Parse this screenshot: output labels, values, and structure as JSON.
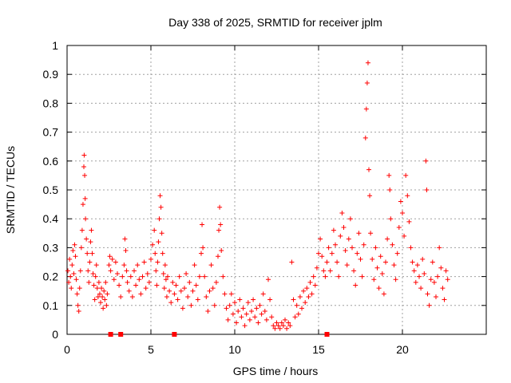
{
  "chart_data": {
    "type": "scatter",
    "title": "Day 338 of 2025, SRMTID for receiver jplm",
    "xlabel": "GPS time / hours",
    "ylabel": "SRMTID / TECUs",
    "xlim": [
      0,
      25
    ],
    "ylim": [
      0,
      1
    ],
    "xticks": [
      "0",
      "5",
      "10",
      "15",
      "20"
    ],
    "yticks": [
      "0",
      "0.1",
      "0.2",
      "0.3",
      "0.4",
      "0.5",
      "0.6",
      "0.7",
      "0.8",
      "0.9",
      "1"
    ],
    "grid": true,
    "marker": "+",
    "color": "#ff0000",
    "outage_markers_x": [
      2.6,
      3.2,
      6.4,
      15.5
    ],
    "series": [
      {
        "name": "SRMTID",
        "points": [
          [
            0.05,
            0.22
          ],
          [
            0.1,
            0.18
          ],
          [
            0.15,
            0.26
          ],
          [
            0.2,
            0.2
          ],
          [
            0.25,
            0.16
          ],
          [
            0.3,
            0.24
          ],
          [
            0.35,
            0.29
          ],
          [
            0.4,
            0.21
          ],
          [
            0.45,
            0.31
          ],
          [
            0.5,
            0.27
          ],
          [
            0.55,
            0.19
          ],
          [
            0.6,
            0.14
          ],
          [
            0.65,
            0.1
          ],
          [
            0.7,
            0.08
          ],
          [
            0.75,
            0.16
          ],
          [
            0.8,
            0.22
          ],
          [
            0.85,
            0.3
          ],
          [
            0.9,
            0.36
          ],
          [
            0.95,
            0.45
          ],
          [
            1.0,
            0.58
          ],
          [
            1.02,
            0.62
          ],
          [
            1.05,
            0.55
          ],
          [
            1.08,
            0.47
          ],
          [
            1.1,
            0.4
          ],
          [
            1.15,
            0.33
          ],
          [
            1.2,
            0.28
          ],
          [
            1.25,
            0.22
          ],
          [
            1.3,
            0.18
          ],
          [
            1.35,
            0.25
          ],
          [
            1.4,
            0.32
          ],
          [
            1.45,
            0.36
          ],
          [
            1.5,
            0.28
          ],
          [
            1.55,
            0.21
          ],
          [
            1.6,
            0.17
          ],
          [
            1.65,
            0.12
          ],
          [
            1.7,
            0.2
          ],
          [
            1.75,
            0.24
          ],
          [
            1.8,
            0.16
          ],
          [
            1.85,
            0.13
          ],
          [
            1.9,
            0.18
          ],
          [
            1.95,
            0.14
          ],
          [
            2.0,
            0.11
          ],
          [
            2.05,
            0.16
          ],
          [
            2.1,
            0.13
          ],
          [
            2.15,
            0.09
          ],
          [
            2.2,
            0.15
          ],
          [
            2.25,
            0.12
          ],
          [
            2.3,
            0.18
          ],
          [
            2.35,
            0.1
          ],
          [
            2.4,
            0.14
          ],
          [
            2.5,
            0.24
          ],
          [
            2.55,
            0.27
          ],
          [
            2.6,
            0.22
          ],
          [
            2.7,
            0.26
          ],
          [
            2.8,
            0.19
          ],
          [
            2.9,
            0.25
          ],
          [
            3.0,
            0.21
          ],
          [
            3.1,
            0.17
          ],
          [
            3.2,
            0.13
          ],
          [
            3.3,
            0.2
          ],
          [
            3.4,
            0.24
          ],
          [
            3.45,
            0.33
          ],
          [
            3.5,
            0.29
          ],
          [
            3.55,
            0.22
          ],
          [
            3.6,
            0.18
          ],
          [
            3.7,
            0.15
          ],
          [
            3.8,
            0.2
          ],
          [
            3.9,
            0.13
          ],
          [
            4.0,
            0.22
          ],
          [
            4.1,
            0.17
          ],
          [
            4.2,
            0.24
          ],
          [
            4.3,
            0.19
          ],
          [
            4.4,
            0.14
          ],
          [
            4.5,
            0.2
          ],
          [
            4.6,
            0.25
          ],
          [
            4.7,
            0.16
          ],
          [
            4.8,
            0.21
          ],
          [
            4.9,
            0.18
          ],
          [
            5.0,
            0.26
          ],
          [
            5.1,
            0.31
          ],
          [
            5.2,
            0.36
          ],
          [
            5.25,
            0.28
          ],
          [
            5.3,
            0.22
          ],
          [
            5.35,
            0.17
          ],
          [
            5.4,
            0.25
          ],
          [
            5.45,
            0.32
          ],
          [
            5.5,
            0.4
          ],
          [
            5.55,
            0.48
          ],
          [
            5.6,
            0.44
          ],
          [
            5.65,
            0.35
          ],
          [
            5.7,
            0.28
          ],
          [
            5.75,
            0.21
          ],
          [
            5.8,
            0.16
          ],
          [
            5.85,
            0.24
          ],
          [
            5.9,
            0.19
          ],
          [
            5.95,
            0.13
          ],
          [
            6.0,
            0.2
          ],
          [
            6.1,
            0.15
          ],
          [
            6.2,
            0.11
          ],
          [
            6.3,
            0.18
          ],
          [
            6.4,
            0.14
          ],
          [
            6.5,
            0.17
          ],
          [
            6.6,
            0.12
          ],
          [
            6.7,
            0.2
          ],
          [
            6.8,
            0.15
          ],
          [
            6.9,
            0.09
          ],
          [
            7.0,
            0.16
          ],
          [
            7.1,
            0.21
          ],
          [
            7.2,
            0.13
          ],
          [
            7.3,
            0.18
          ],
          [
            7.4,
            0.1
          ],
          [
            7.5,
            0.15
          ],
          [
            7.6,
            0.24
          ],
          [
            7.7,
            0.17
          ],
          [
            7.8,
            0.12
          ],
          [
            7.9,
            0.2
          ],
          [
            8.0,
            0.28
          ],
          [
            8.05,
            0.38
          ],
          [
            8.1,
            0.3
          ],
          [
            8.2,
            0.2
          ],
          [
            8.3,
            0.13
          ],
          [
            8.4,
            0.08
          ],
          [
            8.5,
            0.15
          ],
          [
            8.6,
            0.24
          ],
          [
            8.7,
            0.16
          ],
          [
            8.8,
            0.1
          ],
          [
            8.9,
            0.18
          ],
          [
            9.0,
            0.27
          ],
          [
            9.05,
            0.36
          ],
          [
            9.1,
            0.44
          ],
          [
            9.15,
            0.38
          ],
          [
            9.2,
            0.29
          ],
          [
            9.3,
            0.2
          ],
          [
            9.4,
            0.14
          ],
          [
            9.5,
            0.09
          ],
          [
            9.6,
            0.05
          ],
          [
            9.7,
            0.1
          ],
          [
            9.8,
            0.14
          ],
          [
            9.9,
            0.07
          ],
          [
            10.0,
            0.11
          ],
          [
            10.1,
            0.04
          ],
          [
            10.2,
            0.08
          ],
          [
            10.3,
            0.12
          ],
          [
            10.4,
            0.06
          ],
          [
            10.5,
            0.09
          ],
          [
            10.6,
            0.03
          ],
          [
            10.7,
            0.07
          ],
          [
            10.8,
            0.11
          ],
          [
            10.9,
            0.05
          ],
          [
            11.0,
            0.08
          ],
          [
            11.1,
            0.12
          ],
          [
            11.2,
            0.06
          ],
          [
            11.3,
            0.09
          ],
          [
            11.4,
            0.04
          ],
          [
            11.5,
            0.1
          ],
          [
            11.6,
            0.07
          ],
          [
            11.7,
            0.14
          ],
          [
            11.8,
            0.08
          ],
          [
            11.9,
            0.05
          ],
          [
            12.0,
            0.19
          ],
          [
            12.1,
            0.12
          ],
          [
            12.2,
            0.06
          ],
          [
            12.3,
            0.03
          ],
          [
            12.4,
            0.02
          ],
          [
            12.5,
            0.04
          ],
          [
            12.6,
            0.03
          ],
          [
            12.7,
            0.02
          ],
          [
            12.8,
            0.04
          ],
          [
            12.9,
            0.03
          ],
          [
            13.0,
            0.05
          ],
          [
            13.1,
            0.02
          ],
          [
            13.2,
            0.04
          ],
          [
            13.3,
            0.03
          ],
          [
            13.4,
            0.25
          ],
          [
            13.5,
            0.12
          ],
          [
            13.6,
            0.06
          ],
          [
            13.7,
            0.1
          ],
          [
            13.8,
            0.07
          ],
          [
            13.9,
            0.13
          ],
          [
            14.0,
            0.09
          ],
          [
            14.1,
            0.15
          ],
          [
            14.2,
            0.11
          ],
          [
            14.3,
            0.16
          ],
          [
            14.4,
            0.13
          ],
          [
            14.5,
            0.18
          ],
          [
            14.6,
            0.14
          ],
          [
            14.7,
            0.2
          ],
          [
            14.8,
            0.17
          ],
          [
            14.9,
            0.23
          ],
          [
            15.0,
            0.28
          ],
          [
            15.1,
            0.33
          ],
          [
            15.2,
            0.27
          ],
          [
            15.3,
            0.22
          ],
          [
            15.4,
            0.2
          ],
          [
            15.5,
            0.25
          ],
          [
            15.6,
            0.3
          ],
          [
            15.7,
            0.22
          ],
          [
            15.8,
            0.28
          ],
          [
            15.9,
            0.36
          ],
          [
            16.0,
            0.31
          ],
          [
            16.1,
            0.25
          ],
          [
            16.2,
            0.2
          ],
          [
            16.3,
            0.34
          ],
          [
            16.4,
            0.42
          ],
          [
            16.5,
            0.37
          ],
          [
            16.6,
            0.29
          ],
          [
            16.7,
            0.24
          ],
          [
            16.8,
            0.33
          ],
          [
            16.9,
            0.4
          ],
          [
            17.0,
            0.3
          ],
          [
            17.1,
            0.22
          ],
          [
            17.2,
            0.17
          ],
          [
            17.3,
            0.28
          ],
          [
            17.4,
            0.35
          ],
          [
            17.5,
            0.26
          ],
          [
            17.6,
            0.2
          ],
          [
            17.7,
            0.31
          ],
          [
            17.8,
            0.68
          ],
          [
            17.85,
            0.78
          ],
          [
            17.9,
            0.87
          ],
          [
            17.95,
            0.94
          ],
          [
            18.0,
            0.57
          ],
          [
            18.05,
            0.48
          ],
          [
            18.1,
            0.35
          ],
          [
            18.2,
            0.26
          ],
          [
            18.3,
            0.19
          ],
          [
            18.4,
            0.3
          ],
          [
            18.5,
            0.23
          ],
          [
            18.6,
            0.16
          ],
          [
            18.7,
            0.27
          ],
          [
            18.8,
            0.21
          ],
          [
            18.9,
            0.14
          ],
          [
            19.0,
            0.25
          ],
          [
            19.1,
            0.33
          ],
          [
            19.2,
            0.55
          ],
          [
            19.25,
            0.5
          ],
          [
            19.3,
            0.4
          ],
          [
            19.4,
            0.31
          ],
          [
            19.5,
            0.24
          ],
          [
            19.6,
            0.19
          ],
          [
            19.7,
            0.28
          ],
          [
            19.8,
            0.37
          ],
          [
            19.9,
            0.46
          ],
          [
            20.0,
            0.42
          ],
          [
            20.1,
            0.34
          ],
          [
            20.2,
            0.55
          ],
          [
            20.3,
            0.48
          ],
          [
            20.4,
            0.39
          ],
          [
            20.5,
            0.3
          ],
          [
            20.6,
            0.25
          ],
          [
            20.7,
            0.22
          ],
          [
            20.8,
            0.18
          ],
          [
            20.9,
            0.24
          ],
          [
            21.0,
            0.2
          ],
          [
            21.1,
            0.16
          ],
          [
            21.2,
            0.26
          ],
          [
            21.3,
            0.21
          ],
          [
            21.4,
            0.6
          ],
          [
            21.45,
            0.5
          ],
          [
            21.5,
            0.14
          ],
          [
            21.6,
            0.1
          ],
          [
            21.7,
            0.19
          ],
          [
            21.8,
            0.25
          ],
          [
            21.9,
            0.18
          ],
          [
            22.0,
            0.13
          ],
          [
            22.1,
            0.2
          ],
          [
            22.2,
            0.3
          ],
          [
            22.3,
            0.23
          ],
          [
            22.4,
            0.16
          ],
          [
            22.5,
            0.12
          ],
          [
            22.6,
            0.22
          ],
          [
            22.7,
            0.19
          ]
        ]
      }
    ]
  }
}
